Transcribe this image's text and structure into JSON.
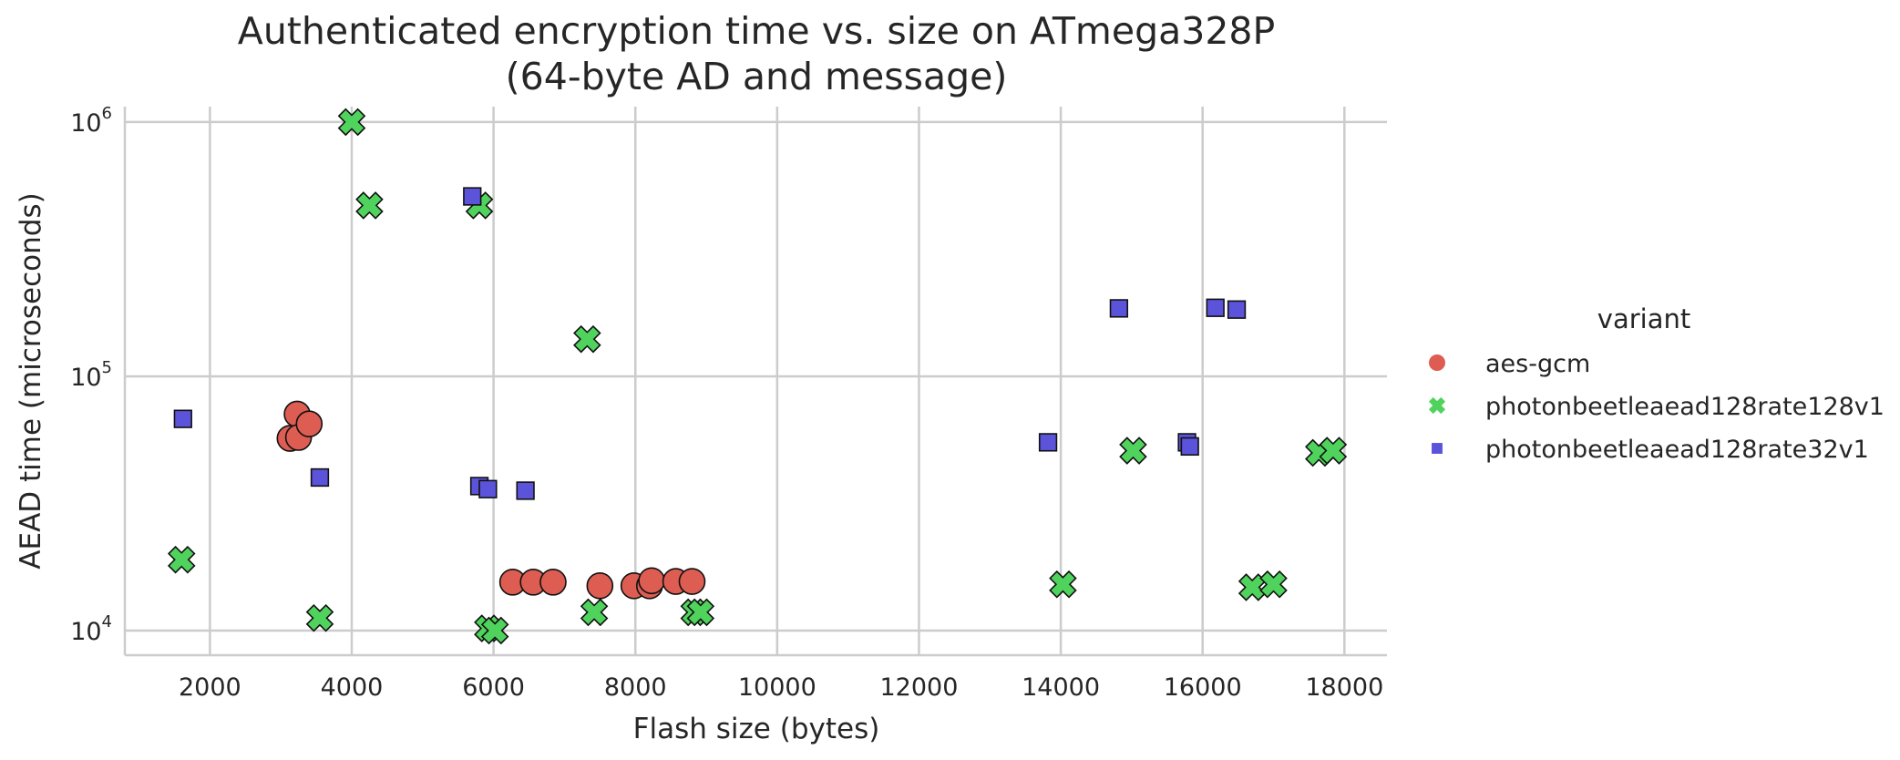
{
  "chart_data": {
    "type": "scatter",
    "title_lines": [
      "Authenticated encryption time vs. size on ATmega328P",
      "(64-byte AD and message)"
    ],
    "xlabel": "Flash size (bytes)",
    "ylabel": "AEAD time (microseconds)",
    "x_scale": "linear",
    "y_scale": "log",
    "xlim": [
      800,
      18600
    ],
    "ylim": [
      8000,
      1150000
    ],
    "x_ticks": [
      2000,
      4000,
      6000,
      8000,
      10000,
      12000,
      14000,
      16000,
      18000
    ],
    "y_ticks": [
      {
        "value": 10000,
        "base": "10",
        "exp": "4"
      },
      {
        "value": 100000,
        "base": "10",
        "exp": "5"
      },
      {
        "value": 1000000,
        "base": "10",
        "exp": "6"
      }
    ],
    "grid": true,
    "legend": {
      "title": "variant",
      "placement": "right"
    },
    "series": [
      {
        "name": "aes-gcm",
        "marker": "circle",
        "color": "#dd5d52",
        "points": [
          [
            3130,
            57000
          ],
          [
            3230,
            71000
          ],
          [
            3250,
            57500
          ],
          [
            3400,
            65000
          ],
          [
            6270,
            15500
          ],
          [
            6560,
            15500
          ],
          [
            6840,
            15500
          ],
          [
            7500,
            15000
          ],
          [
            7980,
            15000
          ],
          [
            8200,
            15000
          ],
          [
            8230,
            15700
          ],
          [
            8570,
            15600
          ],
          [
            8800,
            15600
          ]
        ]
      },
      {
        "name": "photonbeetleaead128rate128v1",
        "marker": "x",
        "color": "#4fd35c",
        "points": [
          [
            1600,
            19000
          ],
          [
            3550,
            11200
          ],
          [
            4000,
            1000000
          ],
          [
            4250,
            470000
          ],
          [
            5800,
            470000
          ],
          [
            5920,
            10200
          ],
          [
            6020,
            10000
          ],
          [
            7320,
            140000
          ],
          [
            7420,
            11800
          ],
          [
            8830,
            11800
          ],
          [
            8920,
            11800
          ],
          [
            14030,
            15200
          ],
          [
            15020,
            51000
          ],
          [
            16700,
            14800
          ],
          [
            17000,
            15200
          ],
          [
            17640,
            50000
          ],
          [
            17840,
            51000
          ]
        ]
      },
      {
        "name": "photonbeetleaead128rate32v1",
        "marker": "square",
        "color": "#5c53db",
        "points": [
          [
            1620,
            68000
          ],
          [
            3550,
            40000
          ],
          [
            5700,
            510000
          ],
          [
            5800,
            37000
          ],
          [
            5920,
            36000
          ],
          [
            6450,
            35500
          ],
          [
            13820,
            55000
          ],
          [
            14820,
            185000
          ],
          [
            15780,
            55000
          ],
          [
            15820,
            53000
          ],
          [
            16180,
            186000
          ],
          [
            16480,
            183000
          ]
        ]
      }
    ]
  }
}
